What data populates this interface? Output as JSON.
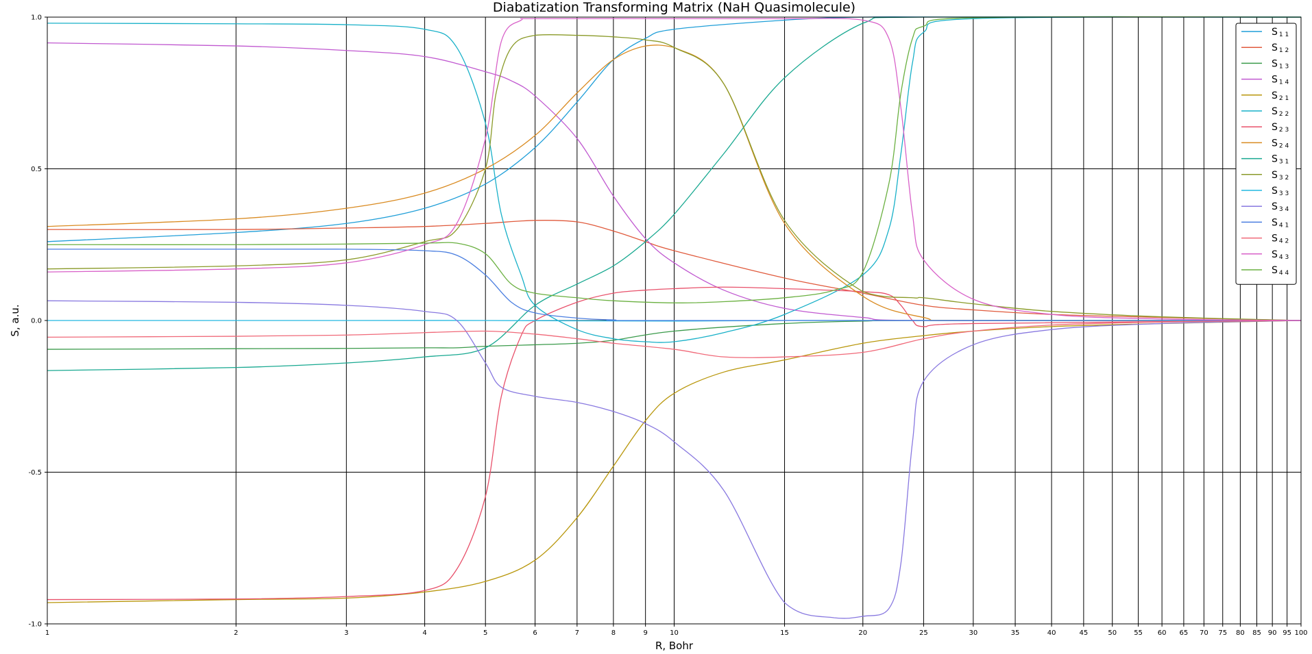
{
  "chart_data": {
    "type": "line",
    "title": "Diabatization Transforming Matrix (NaH Quasimolecule)",
    "xlabel": "R, Bohr",
    "ylabel": "S, a.u.",
    "xscale": "log",
    "xlim": [
      1,
      100
    ],
    "ylim": [
      -1.0,
      1.0
    ],
    "grid": true,
    "legend_position": "top-right",
    "x_ticks": [
      1,
      2,
      3,
      4,
      5,
      6,
      7,
      8,
      9,
      10,
      15,
      20,
      25,
      30,
      35,
      40,
      45,
      50,
      55,
      60,
      65,
      70,
      75,
      80,
      85,
      90,
      95,
      100
    ],
    "x_tick_labels": [
      "1",
      "2",
      "3",
      "4",
      "5",
      "6",
      "7",
      "8",
      "9",
      "10",
      "15",
      "20",
      "25",
      "30",
      "35",
      "40",
      "45",
      "50",
      "55",
      "60",
      "65",
      "70",
      "75",
      "80",
      "85",
      "90",
      "95",
      "100"
    ],
    "y_ticks": [
      -1.0,
      -0.5,
      0.0,
      0.5,
      1.0
    ],
    "y_tick_labels": [
      "-1.0",
      "-0.5",
      "0.0",
      "0.5",
      "1.0"
    ],
    "series": [
      {
        "name": "S11",
        "label_main": "S",
        "label_sub": "1 1",
        "color": "#1f9ed8",
        "points": [
          [
            1,
            0.26
          ],
          [
            2,
            0.29
          ],
          [
            3,
            0.32
          ],
          [
            4,
            0.37
          ],
          [
            5,
            0.45
          ],
          [
            6,
            0.57
          ],
          [
            7,
            0.72
          ],
          [
            8,
            0.86
          ],
          [
            9,
            0.93
          ],
          [
            10,
            0.96
          ],
          [
            15,
            0.99
          ],
          [
            20,
            1.0
          ],
          [
            30,
            1.0
          ],
          [
            100,
            1.0
          ]
        ]
      },
      {
        "name": "S12",
        "label_main": "S",
        "label_sub": "1 2",
        "color": "#e05a3c",
        "points": [
          [
            1,
            0.3
          ],
          [
            2,
            0.3
          ],
          [
            3,
            0.305
          ],
          [
            4,
            0.31
          ],
          [
            5,
            0.32
          ],
          [
            6,
            0.33
          ],
          [
            7,
            0.325
          ],
          [
            8,
            0.295
          ],
          [
            9,
            0.26
          ],
          [
            10,
            0.23
          ],
          [
            15,
            0.14
          ],
          [
            20,
            0.09
          ],
          [
            25,
            0.05
          ],
          [
            30,
            0.035
          ],
          [
            40,
            0.02
          ],
          [
            60,
            0.01
          ],
          [
            100,
            0.0
          ]
        ]
      },
      {
        "name": "S13",
        "label_main": "S",
        "label_sub": "1 3",
        "color": "#3a9a4a",
        "points": [
          [
            1,
            -0.095
          ],
          [
            2,
            -0.093
          ],
          [
            3,
            -0.092
          ],
          [
            4,
            -0.09
          ],
          [
            4.5,
            -0.09
          ],
          [
            5,
            -0.085
          ],
          [
            6,
            -0.08
          ],
          [
            7,
            -0.075
          ],
          [
            8,
            -0.065
          ],
          [
            10,
            -0.035
          ],
          [
            15,
            -0.01
          ],
          [
            20,
            -0.002
          ],
          [
            25,
            0.0
          ],
          [
            100,
            0.0
          ]
        ]
      },
      {
        "name": "S14",
        "label_main": "S",
        "label_sub": "1 4",
        "color": "#c058d0",
        "points": [
          [
            1,
            0.915
          ],
          [
            2,
            0.905
          ],
          [
            3,
            0.89
          ],
          [
            4,
            0.87
          ],
          [
            5,
            0.82
          ],
          [
            5.5,
            0.79
          ],
          [
            6,
            0.74
          ],
          [
            7,
            0.6
          ],
          [
            8,
            0.41
          ],
          [
            9,
            0.27
          ],
          [
            10,
            0.19
          ],
          [
            12,
            0.1
          ],
          [
            15,
            0.04
          ],
          [
            20,
            0.01
          ],
          [
            25,
            0.0
          ],
          [
            100,
            0.0
          ]
        ]
      },
      {
        "name": "S21",
        "label_main": "S",
        "label_sub": "2 1",
        "color": "#b8960a",
        "points": [
          [
            1,
            -0.93
          ],
          [
            2,
            -0.92
          ],
          [
            3,
            -0.915
          ],
          [
            4,
            -0.895
          ],
          [
            5,
            -0.86
          ],
          [
            6,
            -0.79
          ],
          [
            7,
            -0.65
          ],
          [
            8,
            -0.48
          ],
          [
            9,
            -0.33
          ],
          [
            10,
            -0.24
          ],
          [
            12,
            -0.17
          ],
          [
            15,
            -0.13
          ],
          [
            20,
            -0.075
          ],
          [
            25,
            -0.05
          ],
          [
            30,
            -0.035
          ],
          [
            40,
            -0.02
          ],
          [
            60,
            -0.01
          ],
          [
            100,
            0.0
          ]
        ]
      },
      {
        "name": "S22",
        "label_main": "S",
        "label_sub": "2 2",
        "color": "#17b0c8",
        "points": [
          [
            1,
            0.98
          ],
          [
            2,
            0.978
          ],
          [
            3,
            0.975
          ],
          [
            4,
            0.96
          ],
          [
            4.5,
            0.9
          ],
          [
            5,
            0.65
          ],
          [
            5.3,
            0.35
          ],
          [
            5.7,
            0.15
          ],
          [
            6,
            0.05
          ],
          [
            7,
            -0.03
          ],
          [
            8,
            -0.06
          ],
          [
            9,
            -0.07
          ],
          [
            10,
            -0.07
          ],
          [
            12,
            -0.04
          ],
          [
            15,
            0.02
          ],
          [
            20,
            0.15
          ],
          [
            22,
            0.3
          ],
          [
            23,
            0.55
          ],
          [
            24,
            0.85
          ],
          [
            25,
            0.95
          ],
          [
            30,
            0.995
          ],
          [
            100,
            1.0
          ]
        ]
      },
      {
        "name": "S23",
        "label_main": "S",
        "label_sub": "2 3",
        "color": "#e8506a",
        "points": [
          [
            1,
            -0.92
          ],
          [
            2,
            -0.918
          ],
          [
            3,
            -0.91
          ],
          [
            4,
            -0.89
          ],
          [
            4.5,
            -0.82
          ],
          [
            5,
            -0.58
          ],
          [
            5.3,
            -0.25
          ],
          [
            5.7,
            -0.05
          ],
          [
            6,
            0.0
          ],
          [
            7,
            0.06
          ],
          [
            8,
            0.09
          ],
          [
            9,
            0.1
          ],
          [
            10,
            0.105
          ],
          [
            12,
            0.11
          ],
          [
            15,
            0.105
          ],
          [
            20,
            0.095
          ],
          [
            22,
            0.085
          ],
          [
            23,
            0.05
          ],
          [
            24,
            0.0
          ],
          [
            25,
            -0.02
          ],
          [
            30,
            -0.01
          ],
          [
            100,
            0.0
          ]
        ]
      },
      {
        "name": "S24",
        "label_main": "S",
        "label_sub": "2 4",
        "color": "#d98a20",
        "points": [
          [
            1,
            0.31
          ],
          [
            2,
            0.335
          ],
          [
            3,
            0.37
          ],
          [
            4,
            0.42
          ],
          [
            5,
            0.5
          ],
          [
            6,
            0.61
          ],
          [
            7,
            0.75
          ],
          [
            8,
            0.86
          ],
          [
            9,
            0.905
          ],
          [
            10,
            0.9
          ],
          [
            12,
            0.78
          ],
          [
            15,
            0.32
          ],
          [
            20,
            0.08
          ],
          [
            25,
            0.01
          ],
          [
            30,
            0.0
          ],
          [
            100,
            0.0
          ]
        ]
      },
      {
        "name": "S31",
        "label_main": "S",
        "label_sub": "3 1",
        "color": "#17a890",
        "points": [
          [
            1,
            -0.165
          ],
          [
            2,
            -0.155
          ],
          [
            3,
            -0.14
          ],
          [
            4,
            -0.12
          ],
          [
            5,
            -0.09
          ],
          [
            6,
            0.05
          ],
          [
            7,
            0.12
          ],
          [
            8,
            0.18
          ],
          [
            9,
            0.26
          ],
          [
            10,
            0.35
          ],
          [
            12,
            0.55
          ],
          [
            15,
            0.8
          ],
          [
            20,
            0.98
          ],
          [
            25,
            1.0
          ],
          [
            100,
            1.0
          ]
        ]
      },
      {
        "name": "S32",
        "label_main": "S",
        "label_sub": "3 2",
        "color": "#8a9a28",
        "points": [
          [
            1,
            0.17
          ],
          [
            2,
            0.18
          ],
          [
            3,
            0.2
          ],
          [
            4,
            0.26
          ],
          [
            4.5,
            0.3
          ],
          [
            5,
            0.5
          ],
          [
            5.2,
            0.75
          ],
          [
            5.5,
            0.9
          ],
          [
            6,
            0.94
          ],
          [
            7,
            0.94
          ],
          [
            8,
            0.935
          ],
          [
            9,
            0.925
          ],
          [
            10,
            0.9
          ],
          [
            12,
            0.78
          ],
          [
            15,
            0.33
          ],
          [
            20,
            0.095
          ],
          [
            24,
            0.075
          ],
          [
            25,
            0.075
          ],
          [
            30,
            0.055
          ],
          [
            40,
            0.03
          ],
          [
            60,
            0.012
          ],
          [
            100,
            0.0
          ]
        ]
      },
      {
        "name": "S33",
        "label_main": "S",
        "label_sub": "3 3",
        "color": "#20b8e0",
        "points": [
          [
            1,
            0.0
          ],
          [
            3,
            0.0
          ],
          [
            5,
            0.0
          ],
          [
            10,
            -0.002
          ],
          [
            15,
            0.0
          ],
          [
            20,
            0.0
          ],
          [
            100,
            0.0
          ]
        ]
      },
      {
        "name": "S34",
        "label_main": "S",
        "label_sub": "3 4",
        "color": "#8878e0",
        "points": [
          [
            1,
            0.065
          ],
          [
            2,
            0.06
          ],
          [
            3,
            0.05
          ],
          [
            4,
            0.03
          ],
          [
            4.5,
            0.0
          ],
          [
            5,
            -0.14
          ],
          [
            5.3,
            -0.22
          ],
          [
            6,
            -0.25
          ],
          [
            7,
            -0.27
          ],
          [
            8,
            -0.3
          ],
          [
            9,
            -0.34
          ],
          [
            10,
            -0.4
          ],
          [
            12,
            -0.56
          ],
          [
            15,
            -0.93
          ],
          [
            18,
            -0.98
          ],
          [
            20,
            -0.975
          ],
          [
            22,
            -0.95
          ],
          [
            23,
            -0.8
          ],
          [
            24,
            -0.4
          ],
          [
            25,
            -0.2
          ],
          [
            30,
            -0.08
          ],
          [
            40,
            -0.03
          ],
          [
            60,
            -0.01
          ],
          [
            100,
            0.0
          ]
        ]
      },
      {
        "name": "S41",
        "label_main": "S",
        "label_sub": "4 1",
        "color": "#4a7ee0",
        "points": [
          [
            1,
            0.235
          ],
          [
            2,
            0.235
          ],
          [
            3,
            0.235
          ],
          [
            4,
            0.23
          ],
          [
            4.5,
            0.215
          ],
          [
            5,
            0.15
          ],
          [
            5.5,
            0.06
          ],
          [
            6,
            0.025
          ],
          [
            7,
            0.008
          ],
          [
            8,
            0.002
          ],
          [
            10,
            0.0
          ],
          [
            100,
            0.0
          ]
        ]
      },
      {
        "name": "S42",
        "label_main": "S",
        "label_sub": "4 2",
        "color": "#f06878",
        "points": [
          [
            1,
            -0.055
          ],
          [
            2,
            -0.052
          ],
          [
            3,
            -0.048
          ],
          [
            4,
            -0.04
          ],
          [
            5,
            -0.035
          ],
          [
            6,
            -0.045
          ],
          [
            7,
            -0.06
          ],
          [
            8,
            -0.075
          ],
          [
            10,
            -0.095
          ],
          [
            12,
            -0.12
          ],
          [
            15,
            -0.12
          ],
          [
            20,
            -0.105
          ],
          [
            25,
            -0.06
          ],
          [
            30,
            -0.035
          ],
          [
            40,
            -0.015
          ],
          [
            60,
            -0.005
          ],
          [
            100,
            0.0
          ]
        ]
      },
      {
        "name": "S43",
        "label_main": "S",
        "label_sub": "4 3",
        "color": "#d860c8",
        "points": [
          [
            1,
            0.16
          ],
          [
            2,
            0.17
          ],
          [
            3,
            0.19
          ],
          [
            4,
            0.25
          ],
          [
            4.5,
            0.32
          ],
          [
            5,
            0.6
          ],
          [
            5.3,
            0.92
          ],
          [
            5.7,
            0.99
          ],
          [
            6,
            0.995
          ],
          [
            10,
            0.995
          ],
          [
            15,
            0.995
          ],
          [
            20,
            0.99
          ],
          [
            22,
            0.93
          ],
          [
            23,
            0.7
          ],
          [
            24,
            0.35
          ],
          [
            25,
            0.2
          ],
          [
            30,
            0.07
          ],
          [
            40,
            0.02
          ],
          [
            60,
            0.005
          ],
          [
            100,
            0.0
          ]
        ]
      },
      {
        "name": "S44",
        "label_main": "S",
        "label_sub": "4 4",
        "color": "#6ab040",
        "points": [
          [
            1,
            0.25
          ],
          [
            2,
            0.25
          ],
          [
            3,
            0.252
          ],
          [
            4,
            0.255
          ],
          [
            4.5,
            0.255
          ],
          [
            5,
            0.22
          ],
          [
            5.5,
            0.12
          ],
          [
            6,
            0.09
          ],
          [
            7,
            0.075
          ],
          [
            8,
            0.065
          ],
          [
            10,
            0.058
          ],
          [
            12,
            0.062
          ],
          [
            15,
            0.075
          ],
          [
            18,
            0.1
          ],
          [
            20,
            0.16
          ],
          [
            22,
            0.45
          ],
          [
            23,
            0.75
          ],
          [
            24,
            0.93
          ],
          [
            25,
            0.97
          ],
          [
            30,
            0.998
          ],
          [
            100,
            1.0
          ]
        ]
      }
    ]
  }
}
